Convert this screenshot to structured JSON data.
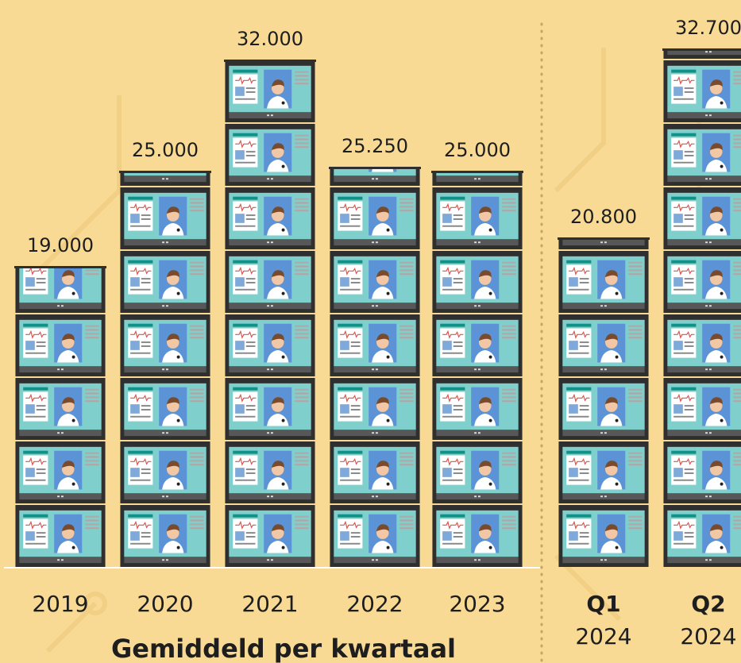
{
  "chart_data": {
    "type": "pictogram-bar",
    "title": "Gemiddeld per kwartaal",
    "categories": [
      "2019",
      "2020",
      "2021",
      "2022",
      "2023",
      "Q1",
      "Q2"
    ],
    "category_years": [
      null,
      null,
      null,
      null,
      null,
      "2024",
      "2024"
    ],
    "values": [
      19000,
      25000,
      32000,
      25250,
      25000,
      20800,
      32700
    ],
    "value_labels": [
      "19.000",
      "25.000",
      "32.000",
      "25.250",
      "25.000",
      "20.800",
      "32.700"
    ]
  }
}
